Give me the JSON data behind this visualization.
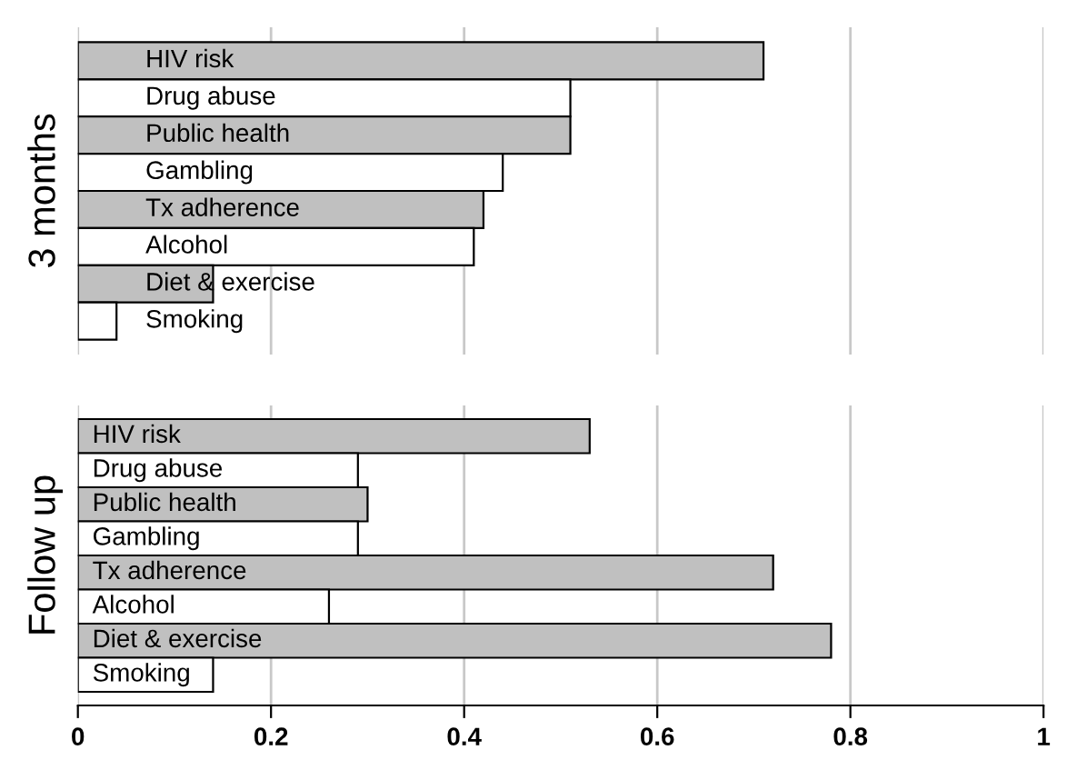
{
  "chart_data": [
    {
      "type": "bar",
      "orientation": "horizontal",
      "ylabel": "3 months",
      "categories": [
        "HIV risk",
        "Drug abuse",
        "Public health",
        "Gambling",
        "Tx adherence",
        "Alcohol",
        "Diet & exercise",
        "Smoking"
      ],
      "values": [
        0.71,
        0.51,
        0.51,
        0.44,
        0.42,
        0.41,
        0.14,
        0.04
      ],
      "colors": [
        "#c0c0c0",
        "#ffffff",
        "#c0c0c0",
        "#ffffff",
        "#c0c0c0",
        "#ffffff",
        "#c0c0c0",
        "#ffffff"
      ],
      "xlim": [
        0,
        1
      ],
      "xticks": [
        0,
        0.2,
        0.4,
        0.6,
        0.8,
        1
      ],
      "grid": "x",
      "tick_labels": false
    },
    {
      "type": "bar",
      "orientation": "horizontal",
      "ylabel": "Follow up",
      "categories": [
        "HIV risk",
        "Drug abuse",
        "Public health",
        "Gambling",
        "Tx adherence",
        "Alcohol",
        "Diet & exercise",
        "Smoking"
      ],
      "values": [
        0.53,
        0.29,
        0.3,
        0.29,
        0.72,
        0.26,
        0.78,
        0.14
      ],
      "colors": [
        "#c0c0c0",
        "#ffffff",
        "#c0c0c0",
        "#ffffff",
        "#c0c0c0",
        "#ffffff",
        "#c0c0c0",
        "#ffffff"
      ],
      "xlim": [
        0,
        1
      ],
      "xticks": [
        0,
        0.2,
        0.4,
        0.6,
        0.8,
        1
      ],
      "grid": "x",
      "tick_labels": "x"
    }
  ]
}
